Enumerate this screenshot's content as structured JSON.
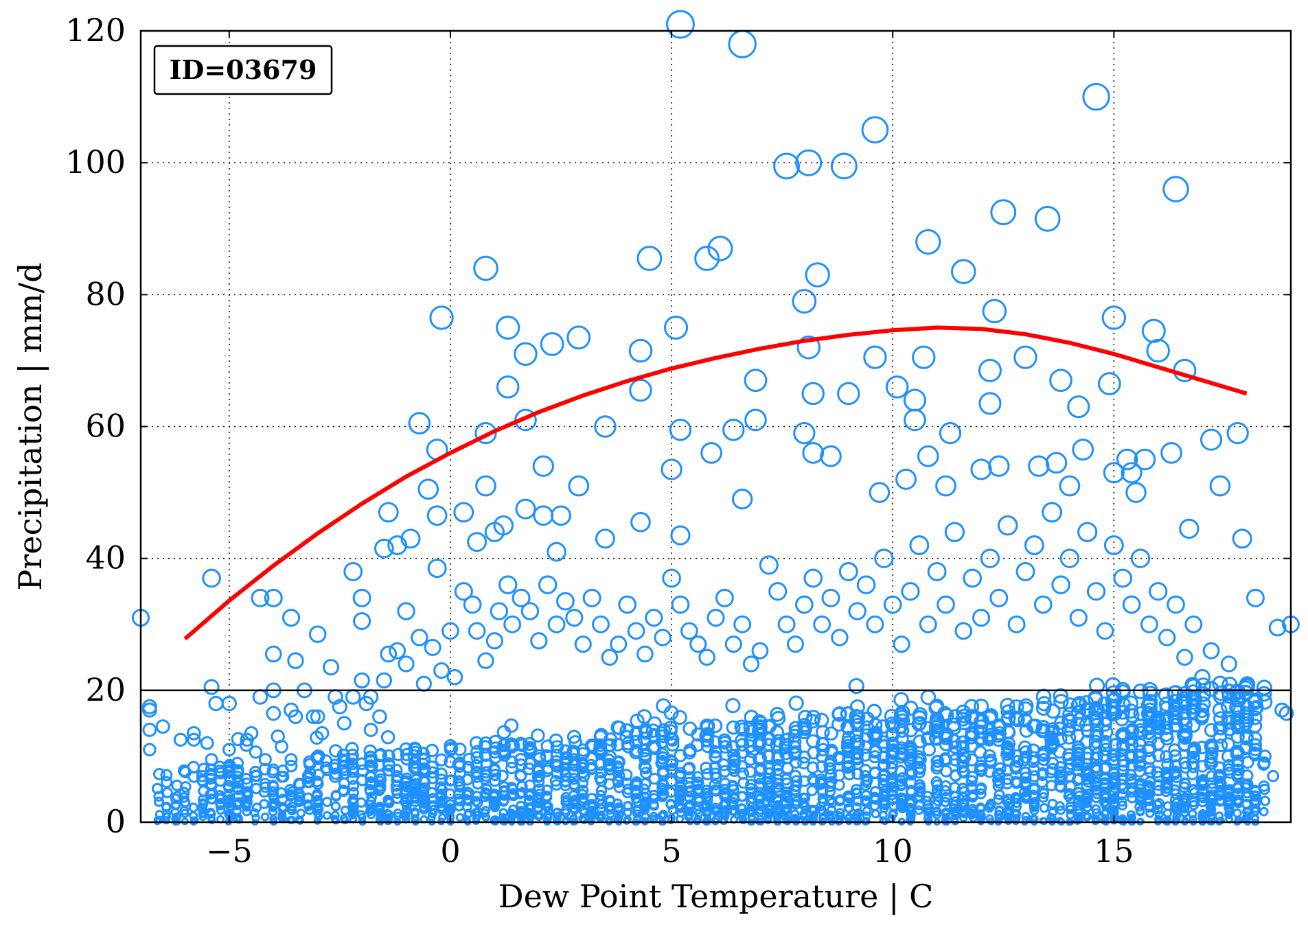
{
  "chart_data": {
    "type": "scatter",
    "title": "",
    "id_label": "ID=03679",
    "xlabel": "Dew Point Temperature | C",
    "ylabel": "Precipitation | mm/d",
    "xlim": [
      -7,
      19
    ],
    "ylim": [
      0,
      120
    ],
    "x_ticks": [
      -5,
      0,
      5,
      10,
      15
    ],
    "x_tick_labels": [
      "−5",
      "0",
      "5",
      "10",
      "15"
    ],
    "y_ticks": [
      0,
      20,
      40,
      60,
      80,
      100,
      120
    ],
    "y_tick_labels": [
      "0",
      "20",
      "40",
      "60",
      "80",
      "100",
      "120"
    ],
    "grid": true,
    "threshold_line": {
      "y": 20,
      "color": "#000000"
    },
    "series": [
      {
        "kind": "scatter",
        "color": "#1e90ff",
        "marker": "open-circle",
        "note_marker_size": "circle size grows with precipitation",
        "points": [
          [
            -7,
            31
          ],
          [
            -5.4,
            37
          ],
          [
            -5.4,
            20.5
          ],
          [
            -4.3,
            34
          ],
          [
            -4.0,
            34
          ],
          [
            -4.0,
            25.5
          ],
          [
            -3.6,
            31
          ],
          [
            -3.5,
            24.5
          ],
          [
            -3.0,
            28.5
          ],
          [
            -2.7,
            23.5
          ],
          [
            -2.2,
            38
          ],
          [
            -2.0,
            34
          ],
          [
            -2.0,
            30.5
          ],
          [
            -1.4,
            47
          ],
          [
            -1.5,
            41.5
          ],
          [
            -1.2,
            42
          ],
          [
            -0.9,
            43
          ],
          [
            -0.7,
            60.5
          ],
          [
            -0.5,
            50.5
          ],
          [
            -0.3,
            56.5
          ],
          [
            -0.3,
            46.5
          ],
          [
            -0.2,
            76.5
          ],
          [
            -0.3,
            38.5
          ],
          [
            0.6,
            42.5
          ],
          [
            0.3,
            47
          ],
          [
            0.8,
            84
          ],
          [
            0.8,
            59
          ],
          [
            0.8,
            51
          ],
          [
            1.0,
            44
          ],
          [
            1.2,
            45
          ],
          [
            1.3,
            75
          ],
          [
            1.3,
            66
          ],
          [
            1.7,
            71
          ],
          [
            1.7,
            61
          ],
          [
            1.7,
            47.5
          ],
          [
            2.1,
            54
          ],
          [
            2.1,
            46.5
          ],
          [
            2.3,
            72.5
          ],
          [
            2.4,
            41
          ],
          [
            2.5,
            46.5
          ],
          [
            2.9,
            73.5
          ],
          [
            2.9,
            51
          ],
          [
            3.5,
            60
          ],
          [
            3.5,
            43
          ],
          [
            4.3,
            71.5
          ],
          [
            4.3,
            65.5
          ],
          [
            4.5,
            85.5
          ],
          [
            4.3,
            45.5
          ],
          [
            5.1,
            75
          ],
          [
            5.2,
            59.5
          ],
          [
            5.2,
            121
          ],
          [
            5.0,
            53.5
          ],
          [
            5.2,
            43.5
          ],
          [
            5.8,
            85.5
          ],
          [
            6.1,
            87
          ],
          [
            5.9,
            56
          ],
          [
            6.4,
            59.5
          ],
          [
            6.6,
            118
          ],
          [
            6.6,
            49
          ],
          [
            6.9,
            67
          ],
          [
            6.9,
            61
          ],
          [
            7.6,
            99.5
          ],
          [
            8.1,
            100
          ],
          [
            8.9,
            99.5
          ],
          [
            9.6,
            105
          ],
          [
            8.0,
            79
          ],
          [
            8.1,
            72
          ],
          [
            8.3,
            83
          ],
          [
            8.2,
            65
          ],
          [
            8.0,
            59
          ],
          [
            8.2,
            56
          ],
          [
            8.6,
            55.5
          ],
          [
            9.0,
            65
          ],
          [
            9.6,
            70.5
          ],
          [
            9.7,
            50
          ],
          [
            10.1,
            66
          ],
          [
            10.5,
            64
          ],
          [
            10.7,
            70.5
          ],
          [
            10.8,
            88
          ],
          [
            10.5,
            61
          ],
          [
            10.3,
            52
          ],
          [
            10.8,
            55.5
          ],
          [
            11.3,
            59
          ],
          [
            11.6,
            83.5
          ],
          [
            11.2,
            51
          ],
          [
            12.0,
            53.5
          ],
          [
            12.2,
            68.5
          ],
          [
            12.2,
            63.5
          ],
          [
            12.3,
            77.5
          ],
          [
            12.5,
            92.5
          ],
          [
            12.4,
            54
          ],
          [
            13.0,
            70.5
          ],
          [
            13.5,
            91.5
          ],
          [
            13.3,
            54
          ],
          [
            13.7,
            54.5
          ],
          [
            13.8,
            67
          ],
          [
            14.2,
            63
          ],
          [
            14.0,
            51
          ],
          [
            14.3,
            56.5
          ],
          [
            14.6,
            110
          ],
          [
            14.9,
            66.5
          ],
          [
            15.0,
            53
          ],
          [
            15.0,
            76.5
          ],
          [
            15.3,
            55
          ],
          [
            15.4,
            53
          ],
          [
            15.5,
            50
          ],
          [
            15.7,
            55
          ],
          [
            15.9,
            74.5
          ],
          [
            16.0,
            71.5
          ],
          [
            16.3,
            56
          ],
          [
            16.4,
            96
          ],
          [
            16.6,
            68.5
          ],
          [
            16.7,
            44.5
          ],
          [
            17.2,
            58
          ],
          [
            17.4,
            51
          ],
          [
            17.8,
            59
          ],
          [
            17.9,
            43
          ],
          [
            18.2,
            34
          ],
          [
            18.7,
            29.5
          ],
          [
            19.0,
            30
          ],
          [
            -6.8,
            17.5
          ],
          [
            -6.8,
            17
          ],
          [
            -6.8,
            14
          ],
          [
            -6.8,
            11
          ],
          [
            -6.5,
            14.5
          ],
          [
            -6.1,
            12.5
          ],
          [
            -5.8,
            13.5
          ],
          [
            -5.8,
            12.5
          ],
          [
            -5.5,
            12
          ],
          [
            -5.3,
            18
          ],
          [
            -5.4,
            9.5
          ],
          [
            -5.0,
            18
          ],
          [
            -5.0,
            11
          ],
          [
            -4.6,
            12.5
          ],
          [
            -4.5,
            13.5
          ],
          [
            -4.3,
            19
          ],
          [
            -4.0,
            20
          ],
          [
            -4.0,
            16.5
          ],
          [
            -3.9,
            13
          ],
          [
            -3.6,
            17
          ],
          [
            -3.5,
            16
          ],
          [
            -3.3,
            20
          ],
          [
            -3.1,
            16
          ],
          [
            -3.0,
            16
          ],
          [
            -2.9,
            13.5
          ],
          [
            -2.6,
            19
          ],
          [
            -2.5,
            17.5
          ],
          [
            -2.4,
            15
          ],
          [
            -2.2,
            19
          ],
          [
            -2.0,
            21.5
          ],
          [
            -1.9,
            18
          ],
          [
            -1.8,
            19
          ],
          [
            -1.6,
            16
          ],
          [
            -1.5,
            21.5
          ],
          [
            -1.4,
            25.5
          ],
          [
            -1.2,
            26
          ],
          [
            -1.0,
            24
          ],
          [
            -1.0,
            32
          ],
          [
            -0.7,
            28
          ],
          [
            -0.6,
            21
          ],
          [
            -0.4,
            26.5
          ],
          [
            -0.2,
            23
          ],
          [
            0.0,
            29
          ],
          [
            0.1,
            22
          ],
          [
            0.3,
            35
          ],
          [
            0.5,
            33
          ],
          [
            0.6,
            29
          ],
          [
            0.8,
            24.5
          ],
          [
            1.0,
            27.5
          ],
          [
            1.1,
            32
          ],
          [
            1.3,
            36
          ],
          [
            1.4,
            30
          ],
          [
            1.6,
            34
          ],
          [
            1.8,
            32
          ],
          [
            2.0,
            27.5
          ],
          [
            2.2,
            36
          ],
          [
            2.4,
            30
          ],
          [
            2.6,
            33.5
          ],
          [
            2.8,
            31
          ],
          [
            3.0,
            27
          ],
          [
            3.2,
            34
          ],
          [
            3.4,
            30
          ],
          [
            3.6,
            25
          ],
          [
            3.8,
            27
          ],
          [
            4.0,
            33
          ],
          [
            4.2,
            29
          ],
          [
            4.4,
            25.5
          ],
          [
            4.6,
            31
          ],
          [
            4.8,
            28
          ],
          [
            5.0,
            37
          ],
          [
            5.2,
            33
          ],
          [
            5.4,
            29
          ],
          [
            5.6,
            27
          ],
          [
            5.8,
            25
          ],
          [
            6.0,
            31
          ],
          [
            6.2,
            34
          ],
          [
            6.4,
            27
          ],
          [
            6.6,
            30
          ],
          [
            6.8,
            24
          ],
          [
            7.0,
            26
          ],
          [
            7.2,
            39
          ],
          [
            7.4,
            35
          ],
          [
            7.6,
            30
          ],
          [
            7.8,
            27
          ],
          [
            8.0,
            33
          ],
          [
            8.2,
            37
          ],
          [
            8.4,
            30
          ],
          [
            8.6,
            34
          ],
          [
            8.8,
            28
          ],
          [
            9.0,
            38
          ],
          [
            9.2,
            32
          ],
          [
            9.4,
            36
          ],
          [
            9.6,
            30
          ],
          [
            9.8,
            40
          ],
          [
            10.0,
            33
          ],
          [
            10.2,
            27
          ],
          [
            10.4,
            35
          ],
          [
            10.6,
            42
          ],
          [
            10.8,
            30
          ],
          [
            11.0,
            38
          ],
          [
            11.2,
            33
          ],
          [
            11.4,
            44
          ],
          [
            11.6,
            29
          ],
          [
            11.8,
            37
          ],
          [
            12.0,
            31
          ],
          [
            12.2,
            40
          ],
          [
            12.4,
            34
          ],
          [
            12.6,
            45
          ],
          [
            12.8,
            30
          ],
          [
            13.0,
            38
          ],
          [
            13.2,
            42
          ],
          [
            13.4,
            33
          ],
          [
            13.6,
            47
          ],
          [
            13.8,
            36
          ],
          [
            14.0,
            40
          ],
          [
            14.2,
            31
          ],
          [
            14.4,
            44
          ],
          [
            14.6,
            35
          ],
          [
            14.8,
            29
          ],
          [
            15.0,
            42
          ],
          [
            15.2,
            37
          ],
          [
            15.4,
            33
          ],
          [
            15.6,
            40
          ],
          [
            15.8,
            30
          ],
          [
            16.0,
            35
          ],
          [
            16.2,
            28
          ],
          [
            16.4,
            33
          ],
          [
            16.6,
            25
          ],
          [
            16.8,
            30
          ],
          [
            17.0,
            22
          ],
          [
            17.2,
            26
          ],
          [
            17.4,
            21
          ],
          [
            17.6,
            24
          ],
          [
            17.8,
            19
          ],
          [
            18.0,
            13
          ],
          [
            18.2,
            11
          ],
          [
            18.4,
            9
          ],
          [
            18.6,
            7
          ],
          [
            18.8,
            17
          ],
          [
            18.9,
            16.5
          ]
        ]
      },
      {
        "kind": "line",
        "name": "",
        "color": "#ff0000",
        "x": [
          -6,
          -5,
          -4,
          -3,
          -2,
          -1,
          0,
          1,
          2,
          3,
          4,
          5,
          6,
          7,
          8,
          9,
          10,
          11,
          12,
          13,
          14,
          15,
          16,
          17,
          18
        ],
        "y": [
          27.8,
          33.6,
          38.9,
          43.8,
          48.3,
          52.4,
          56.0,
          59.3,
          62.2,
          64.7,
          66.9,
          68.8,
          70.4,
          71.8,
          73.0,
          73.9,
          74.6,
          75.0,
          74.8,
          74.0,
          72.7,
          71.0,
          69.0,
          67.0,
          65.0
        ]
      }
    ]
  }
}
